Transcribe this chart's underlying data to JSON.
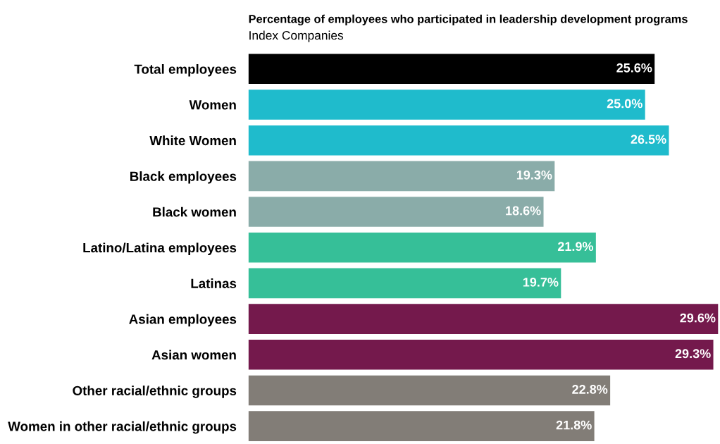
{
  "chart_data": {
    "type": "bar",
    "orientation": "horizontal",
    "title": "Percentage of employees who participated in leadership development programs",
    "subtitle": "Index Companies",
    "categories": [
      "Total employees",
      "Women",
      "White Women",
      "Black employees",
      "Black women",
      "Latino/Latina employees",
      "Latinas",
      "Asian employees",
      "Asian women",
      "Other racial/ethnic groups",
      "Women in other racial/ethnic groups"
    ],
    "values": [
      25.6,
      25.0,
      26.5,
      19.3,
      18.6,
      21.9,
      19.7,
      29.6,
      29.3,
      22.8,
      21.8
    ],
    "colors": [
      "#000000",
      "#1fbbcc",
      "#1fbbcc",
      "#8aaca9",
      "#8aaca9",
      "#36bf98",
      "#36bf98",
      "#74194c",
      "#74194c",
      "#827d77",
      "#827d77"
    ],
    "value_labels": [
      "25.6%",
      "25.0%",
      "26.5%",
      "19.3%",
      "18.6%",
      "21.9%",
      "19.7%",
      "29.6%",
      "29.3%",
      "22.8%",
      "21.8%"
    ],
    "grid": false,
    "legend": false
  }
}
